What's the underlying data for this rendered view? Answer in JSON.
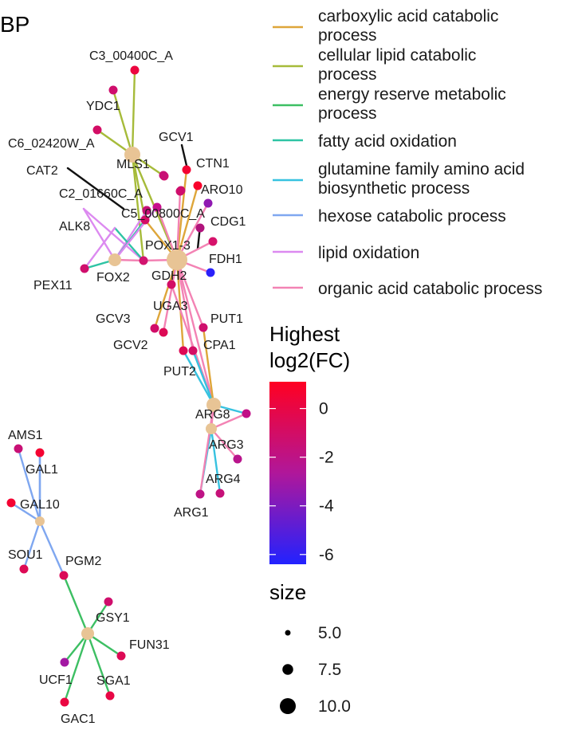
{
  "panel_title": "BP",
  "edge_legend": {
    "items": [
      {
        "lines": [
          "carboxylic acid catabolic",
          "process"
        ],
        "color": "#dea63a"
      },
      {
        "lines": [
          "cellular lipid catabolic",
          "process"
        ],
        "color": "#a6bb3a"
      },
      {
        "lines": [
          "energy reserve metabolic",
          "process"
        ],
        "color": "#3dbf63"
      },
      {
        "lines": [
          "fatty acid oxidation"
        ],
        "color": "#2ec4a4"
      },
      {
        "lines": [
          "glutamine family amino acid",
          "biosynthetic process"
        ],
        "color": "#37c2e0"
      },
      {
        "lines": [
          "hexose catabolic process"
        ],
        "color": "#7fa7f0"
      },
      {
        "lines": [
          "lipid oxidation"
        ],
        "color": "#dc8af0"
      },
      {
        "lines": [
          "organic acid catabolic process"
        ],
        "color": "#f383b4"
      }
    ]
  },
  "color_legend": {
    "title_lines": [
      "Highest",
      "log2(FC)"
    ],
    "ticks": [
      0,
      -2,
      -4,
      -6
    ],
    "range": [
      -6.4,
      1.1
    ],
    "low_color": "#2222ff",
    "mid_color": "#b0179a",
    "high_color": "#ff0022"
  },
  "size_legend": {
    "title": "size",
    "entries": [
      5.0,
      7.5,
      10.0
    ],
    "labels": [
      "5.0",
      "7.5",
      "10.0"
    ]
  },
  "network": {
    "hub_color": "#e8c495",
    "hubs": [
      {
        "id": "h_lipid",
        "label": "MLS1"
      },
      {
        "id": "h_fa",
        "label": "FOX2"
      },
      {
        "id": "h_oa",
        "label": "GDH2"
      },
      {
        "id": "h_arg",
        "label": "ARG8"
      },
      {
        "id": "h_arg2",
        "label": ""
      },
      {
        "id": "h_hex",
        "label": ""
      },
      {
        "id": "h_en",
        "label": ""
      }
    ],
    "genes": [
      {
        "id": "C3_00400C_A",
        "fc": 0.2
      },
      {
        "id": "YDC1",
        "fc": -1.2
      },
      {
        "id": "C6_02420W_A",
        "fc": -1.0
      },
      {
        "id": "GCV1",
        "fc": null
      },
      {
        "id": "CTN1",
        "fc": 0.6
      },
      {
        "id": "CAT2",
        "fc": null
      },
      {
        "id": "ARO10",
        "fc": 0.8
      },
      {
        "id": "C2_01660C_A",
        "fc": -1.5
      },
      {
        "id": "C5_00800C_A",
        "fc": -1.2
      },
      {
        "id": "CDG1",
        "fc": -3.5
      },
      {
        "id": "ALK8",
        "fc": -1.6
      },
      {
        "id": "POX1-3",
        "fc": -1.0
      },
      {
        "id": "FDH1",
        "fc": -6.2
      },
      {
        "id": "PEX11",
        "fc": -1.2
      },
      {
        "id": "UGA3",
        "fc": -1.0
      },
      {
        "id": "PUT1",
        "fc": -1.2
      },
      {
        "id": "GCV3",
        "fc": -1.1
      },
      {
        "id": "GCV2",
        "fc": -0.5
      },
      {
        "id": "CPA1",
        "fc": -1.0
      },
      {
        "id": "PUT2",
        "fc": -0.5
      },
      {
        "id": "ARG3",
        "fc": -2.2
      },
      {
        "id": "ARG4",
        "fc": -1.6
      },
      {
        "id": "ARG1",
        "fc": -2.0
      },
      {
        "id": "AMS1",
        "fc": -1.5
      },
      {
        "id": "GAL1",
        "fc": 0.6
      },
      {
        "id": "GAL10",
        "fc": 0.6
      },
      {
        "id": "SOU1",
        "fc": -0.5
      },
      {
        "id": "PGM2",
        "fc": -0.6
      },
      {
        "id": "GSY1",
        "fc": -1.2
      },
      {
        "id": "FUN31",
        "fc": -0.5
      },
      {
        "id": "UCF1",
        "fc": -3.0
      },
      {
        "id": "SGA1",
        "fc": 0.0
      },
      {
        "id": "GAC1",
        "fc": 0.1
      }
    ]
  }
}
